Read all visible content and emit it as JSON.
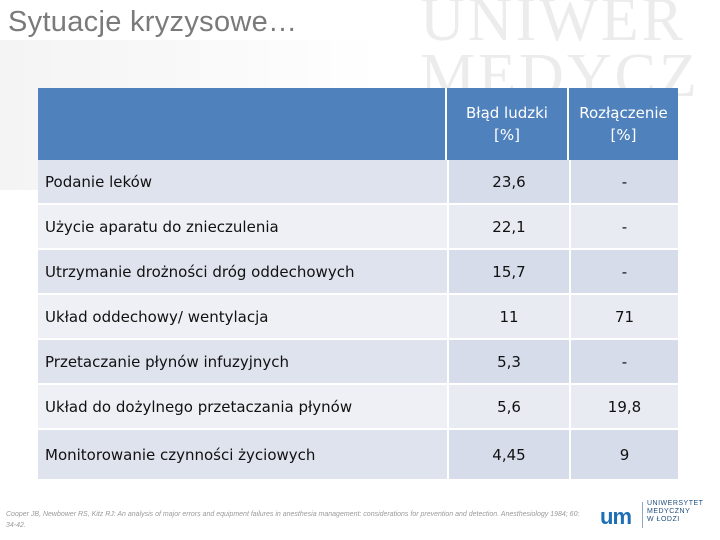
{
  "slide": {
    "title": "Sytuacje kryzysowe…",
    "watermark_text": "UNIWER MEDYCZ W ŁO"
  },
  "table": {
    "headers": [
      "",
      "Błąd ludzki [%]",
      "Rozłączenie [%]"
    ],
    "rows": [
      {
        "label": "Podanie leków",
        "human_error": "23,6",
        "disconnection": "-"
      },
      {
        "label": "Użycie aparatu do znieczulenia",
        "human_error": "22,1",
        "disconnection": "-"
      },
      {
        "label": "Utrzymanie drożności dróg oddechowych",
        "human_error": "15,7",
        "disconnection": "-"
      },
      {
        "label": "Układ oddechowy/ wentylacja",
        "human_error": "11",
        "disconnection": "71"
      },
      {
        "label": "Przetaczanie płynów infuzyjnych",
        "human_error": "5,3",
        "disconnection": "-"
      },
      {
        "label": "Układ do dożylnego przetaczania płynów",
        "human_error": "5,6",
        "disconnection": "19,8"
      },
      {
        "label": "Monitorowanie czynności życiowych",
        "human_error": "4,45",
        "disconnection": "9"
      }
    ]
  },
  "footnote": "Cooper JB, Newbower RS, Kitz RJ: An analysis of major errors and equipment failures in anesthesia management: considerations for prevention and detection. Anesthesiology 1984; 60: 34-42.",
  "logo": {
    "mark": "um",
    "text": "UNIWERSYTET\nMEDYCZNY\nW ŁODZI",
    "color": "#1f6fb6"
  },
  "colors": {
    "header_bg": "#4f81bd",
    "row_bg_dark": "#dfe3ee",
    "row_bg_light": "#eef0f5",
    "title_text": "#7a7a7a"
  }
}
